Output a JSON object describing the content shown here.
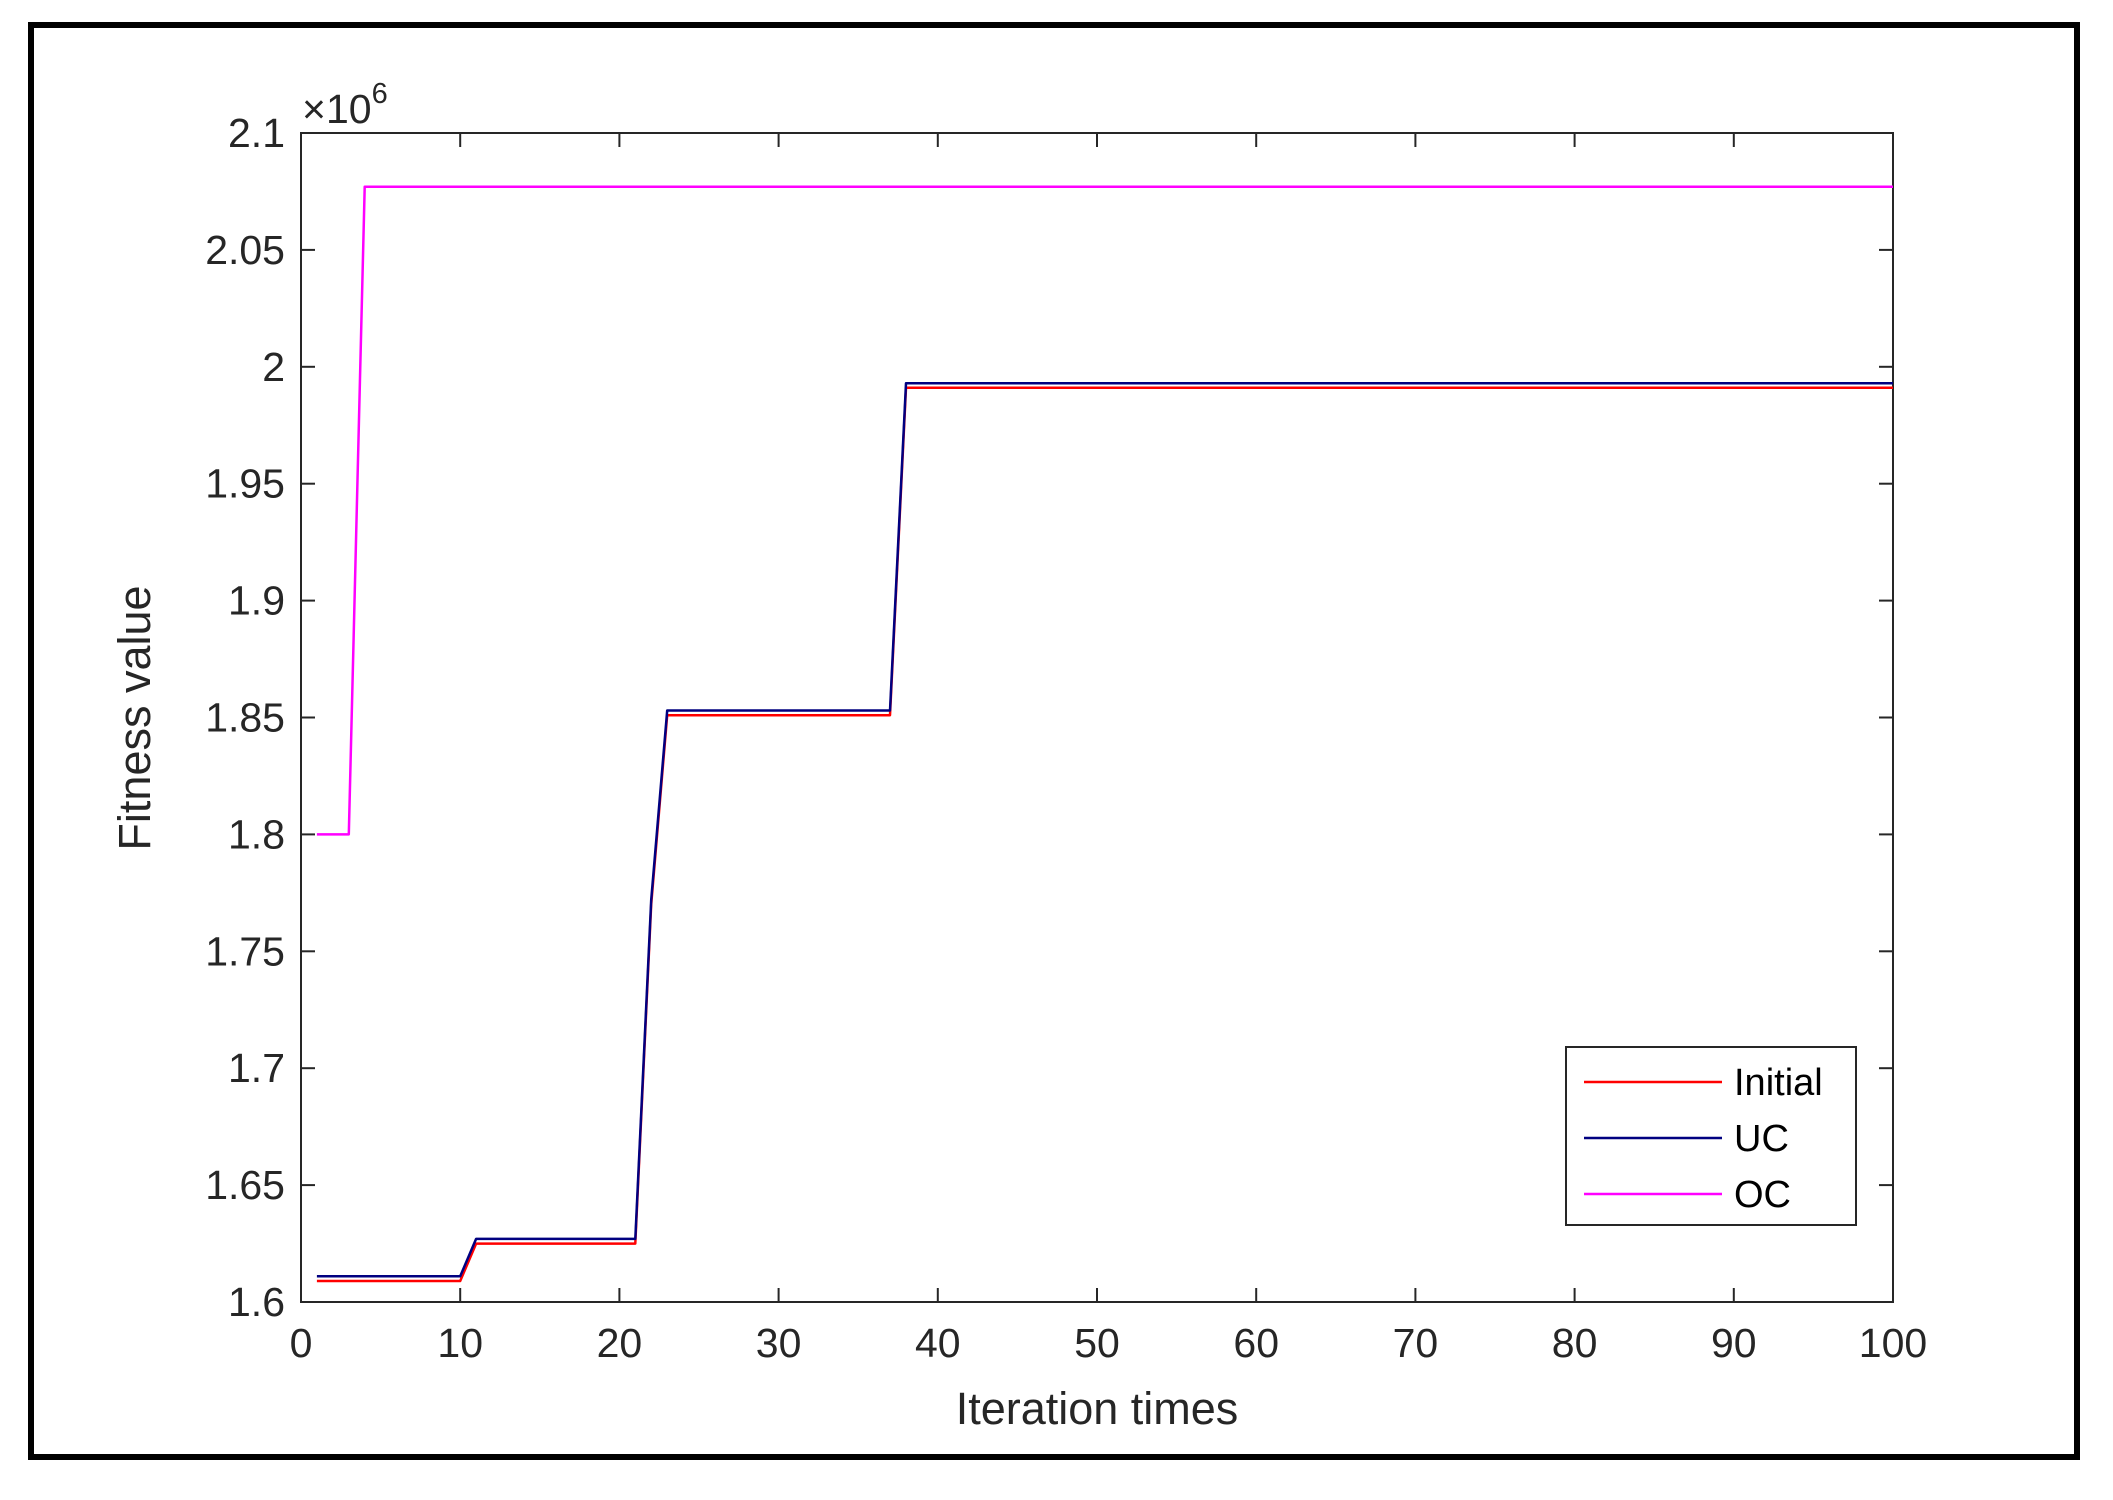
{
  "chart_data": {
    "type": "line",
    "title": "",
    "xlabel": "Iteration times",
    "ylabel": "Fitness value",
    "y_exponent_label": "×10",
    "y_exponent_power": "6",
    "xlim": [
      0,
      100
    ],
    "ylim": [
      1.6,
      2.1
    ],
    "x_ticks": [
      "0",
      "10",
      "20",
      "30",
      "40",
      "50",
      "60",
      "70",
      "80",
      "90",
      "100"
    ],
    "y_ticks": [
      "1.6",
      "1.65",
      "1.7",
      "1.75",
      "1.8",
      "1.85",
      "1.9",
      "1.95",
      "2",
      "2.05",
      "2.1"
    ],
    "grid": false,
    "legend_position": "bottom-right",
    "series": [
      {
        "name": "Initial",
        "color": "#ff0000",
        "x": [
          1,
          10,
          11,
          21,
          22,
          23,
          37,
          38,
          100
        ],
        "y": [
          1.609,
          1.609,
          1.625,
          1.625,
          1.77,
          1.851,
          1.851,
          1.991,
          1.991
        ]
      },
      {
        "name": "UC",
        "color": "#000080",
        "x": [
          1,
          10,
          11,
          21,
          22,
          23,
          37,
          38,
          100
        ],
        "y": [
          1.611,
          1.611,
          1.627,
          1.627,
          1.772,
          1.853,
          1.853,
          1.993,
          1.993
        ]
      },
      {
        "name": "OC",
        "color": "#ff00ff",
        "x": [
          1,
          3,
          4,
          100
        ],
        "y": [
          1.8,
          1.8,
          2.077,
          2.077
        ]
      }
    ]
  }
}
